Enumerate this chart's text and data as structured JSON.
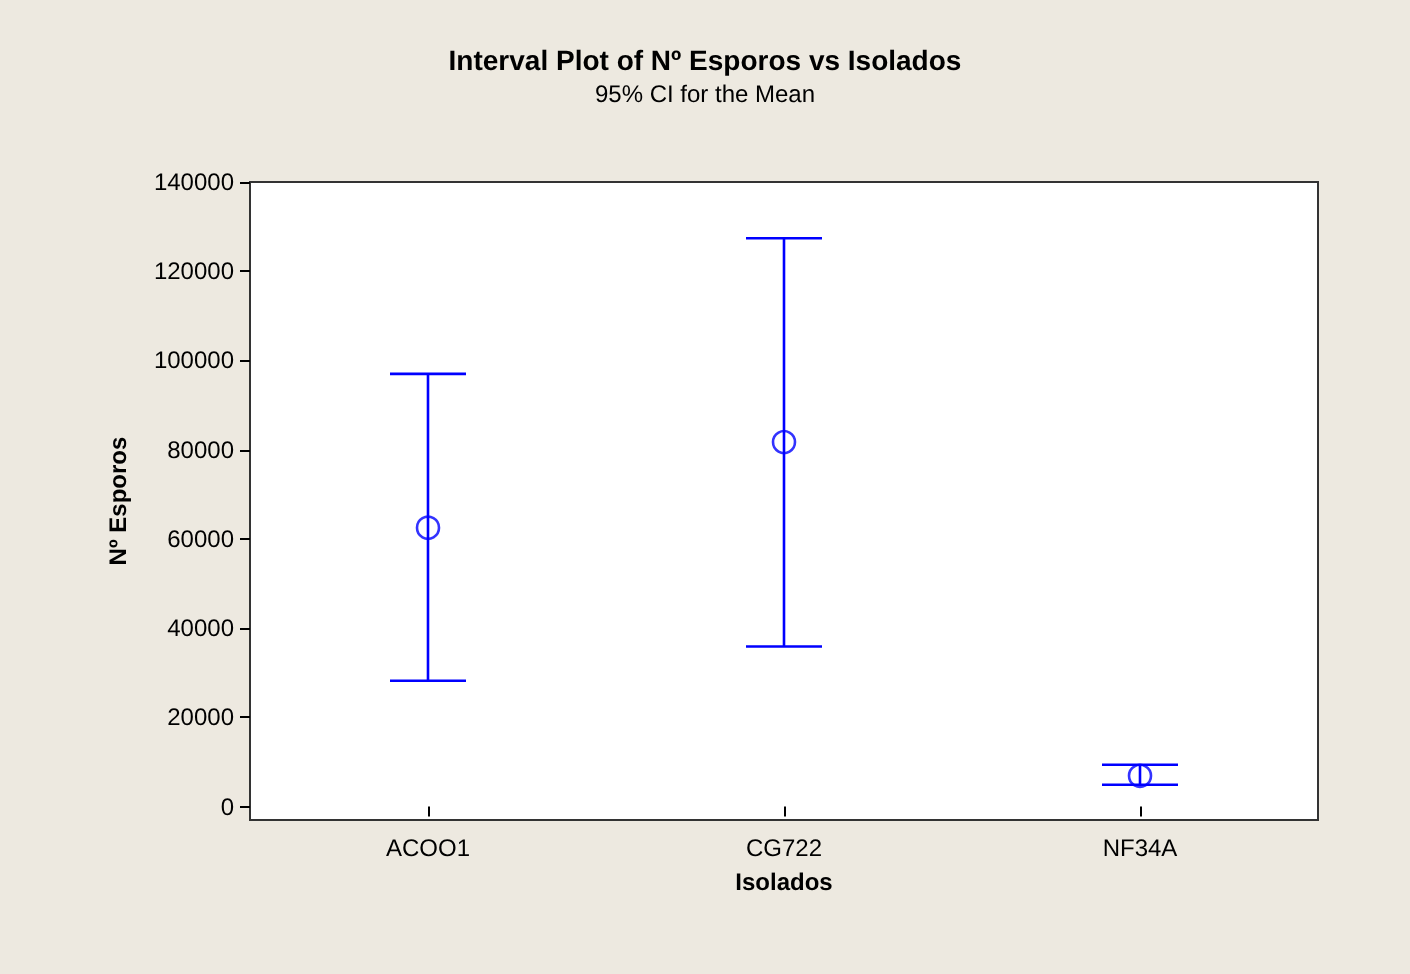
{
  "chart_data": {
    "type": "scatter",
    "title": "Interval Plot of Nº Esporos vs Isolados",
    "subtitle": "95% CI for the Mean",
    "xlabel": "Isolados",
    "ylabel": "Nº Esporos",
    "categories": [
      "ACOO1",
      "CG722",
      "NF34A"
    ],
    "series": [
      {
        "color": "#0000ff",
        "values": [
          62500,
          81700,
          6900
        ],
        "errors": [
          [
            28200,
            97000
          ],
          [
            35900,
            127400
          ],
          [
            4900,
            9400
          ]
        ]
      }
    ],
    "marker": "circle",
    "ylim": [
      -3000,
      140000
    ],
    "yticks": [
      0,
      20000,
      40000,
      60000,
      80000,
      100000,
      120000,
      140000
    ]
  }
}
